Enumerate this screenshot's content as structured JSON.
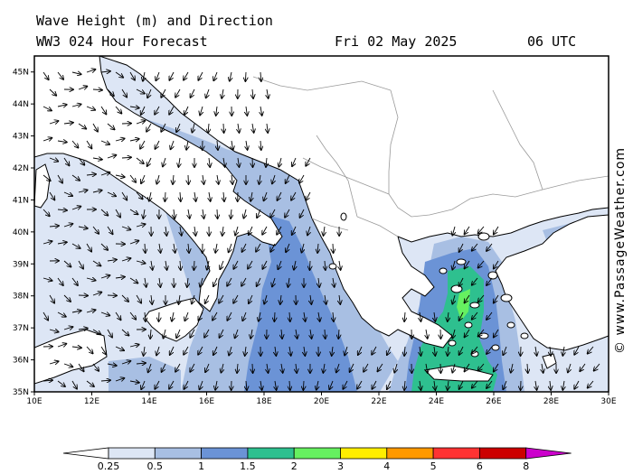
{
  "header": {
    "title_line1": "Wave Height (m) and Direction",
    "title_line2": "WW3 024 Hour Forecast",
    "date": "Fri 02 May 2025",
    "time": "06 UTC"
  },
  "credit": "© www.PassageWeather.com",
  "map": {
    "lat_labels": [
      "45N",
      "44N",
      "43N",
      "42N",
      "41N",
      "40N",
      "39N",
      "38N",
      "37N",
      "36N",
      "35N"
    ],
    "lon_labels": [
      "10E",
      "12E",
      "14E",
      "16E",
      "18E",
      "20E",
      "22E",
      "24E",
      "26E",
      "28E",
      "30E"
    ],
    "lat_range": [
      35,
      45.5
    ],
    "lon_range": [
      10,
      30
    ],
    "arrow_color": "#000000",
    "land_color": "#ffffff"
  },
  "legend": {
    "labels": [
      "0.25",
      "0.5",
      "1",
      "1.5",
      "2",
      "3",
      "4",
      "5",
      "6",
      "8"
    ],
    "colors": [
      "#ffffff",
      "#dde6f5",
      "#a8bfe3",
      "#6b93d6",
      "#2ec08f",
      "#66f060",
      "#ffee00",
      "#ff9900",
      "#ff3333",
      "#cc0000",
      "#cc00cc"
    ]
  }
}
